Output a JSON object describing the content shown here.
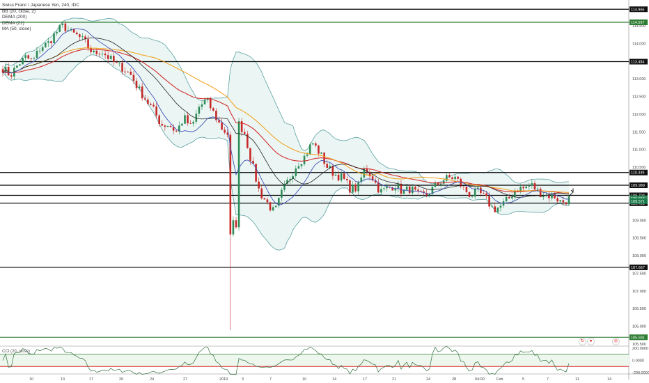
{
  "legend": {
    "title": "Swiss Franc / Japanese Yen, 240, IDC",
    "bb": "BB (20, close, 2)",
    "dema200": "DEMA (200)",
    "dema21": "DEMA (21)",
    "ma50": "MA (50, close)"
  },
  "cci_label": "CCI (20, close)",
  "colors": {
    "up": "#2e8b57",
    "down": "#c62828",
    "bb": "#5aa0a0",
    "bb_fill": "#e6f4f1",
    "dema200": "#d32f2f",
    "dema21": "#3f51b5",
    "ma50": "#f39c12",
    "level": "#000000",
    "level_green": "#2e7d32",
    "cci": "#2f6e3a"
  },
  "chart_data": {
    "type": "candlestick",
    "ylim": [
      105.5,
      115.05
    ],
    "price_ticks": [
      "114.500",
      "114.000",
      "113.500",
      "113.000",
      "112.500",
      "112.000",
      "111.500",
      "111.000",
      "110.500",
      "110.000",
      "109.500",
      "109.000",
      "108.500",
      "108.000",
      "107.500",
      "107.000",
      "106.500",
      "106.000",
      "105.500"
    ],
    "x_ticks": [
      "10",
      "13",
      "17",
      "20",
      "24",
      "27",
      "2019",
      "3",
      "7",
      "10",
      "14",
      "17",
      "21",
      "24",
      "28",
      "04:00",
      "Feb",
      "5",
      "7",
      "11",
      "14"
    ],
    "levels": [
      {
        "value": 114.966,
        "label": "114.966",
        "color": "black"
      },
      {
        "value": 114.597,
        "label": "114.597",
        "color": "green"
      },
      {
        "value": 113.484,
        "label": "113.484",
        "color": "black"
      },
      {
        "value": 110.349,
        "label": "110.349",
        "color": "black"
      },
      {
        "value": 109.989,
        "label": "109.989",
        "color": "black"
      },
      {
        "value": 109.704,
        "label": "109.704",
        "color": "black"
      },
      {
        "value": 109.481,
        "label": "109.481",
        "color": "black"
      },
      {
        "value": 107.667,
        "label": "107.667",
        "color": "black"
      },
      {
        "value": 105.691,
        "label": "105.691",
        "color": "green"
      }
    ],
    "last_price_labels": [
      "109.656",
      "109.571"
    ],
    "close_path": [
      113.3,
      113.1,
      113.4,
      113.6,
      113.5,
      113.9,
      114.0,
      114.3,
      114.5,
      114.3,
      114.2,
      114.0,
      113.7,
      113.8,
      113.6,
      113.4,
      113.3,
      113.1,
      112.7,
      112.4,
      112.1,
      111.7,
      111.7,
      111.5,
      111.9,
      111.6,
      112.2,
      112.4,
      112.0,
      111.6,
      111.4,
      111.8,
      111.5,
      110.6,
      109.8,
      109.5,
      109.2,
      109.8,
      110.2,
      110.6,
      110.8,
      111.2,
      110.9,
      110.5,
      110.3,
      110.2,
      109.9,
      109.9,
      110.5,
      110.2,
      109.8,
      109.9,
      110.0,
      109.8,
      109.9,
      109.7,
      109.7,
      109.9,
      110.1,
      110.2,
      110.2,
      109.9,
      109.7,
      109.8,
      109.6,
      109.3,
      109.4,
      109.6,
      109.9,
      109.9,
      110.0,
      109.8,
      109.7,
      109.7,
      109.5,
      109.6
    ],
    "close_noise_amp": 0.13,
    "crash": {
      "x_position": 0.4,
      "low": 105.89,
      "rebound": 108.6
    },
    "cci": {
      "range": [
        -200,
        200
      ],
      "ticks": [
        "200.0000",
        "0.0000",
        "-200.0000"
      ],
      "reference_levels": [
        100,
        -100
      ]
    }
  }
}
